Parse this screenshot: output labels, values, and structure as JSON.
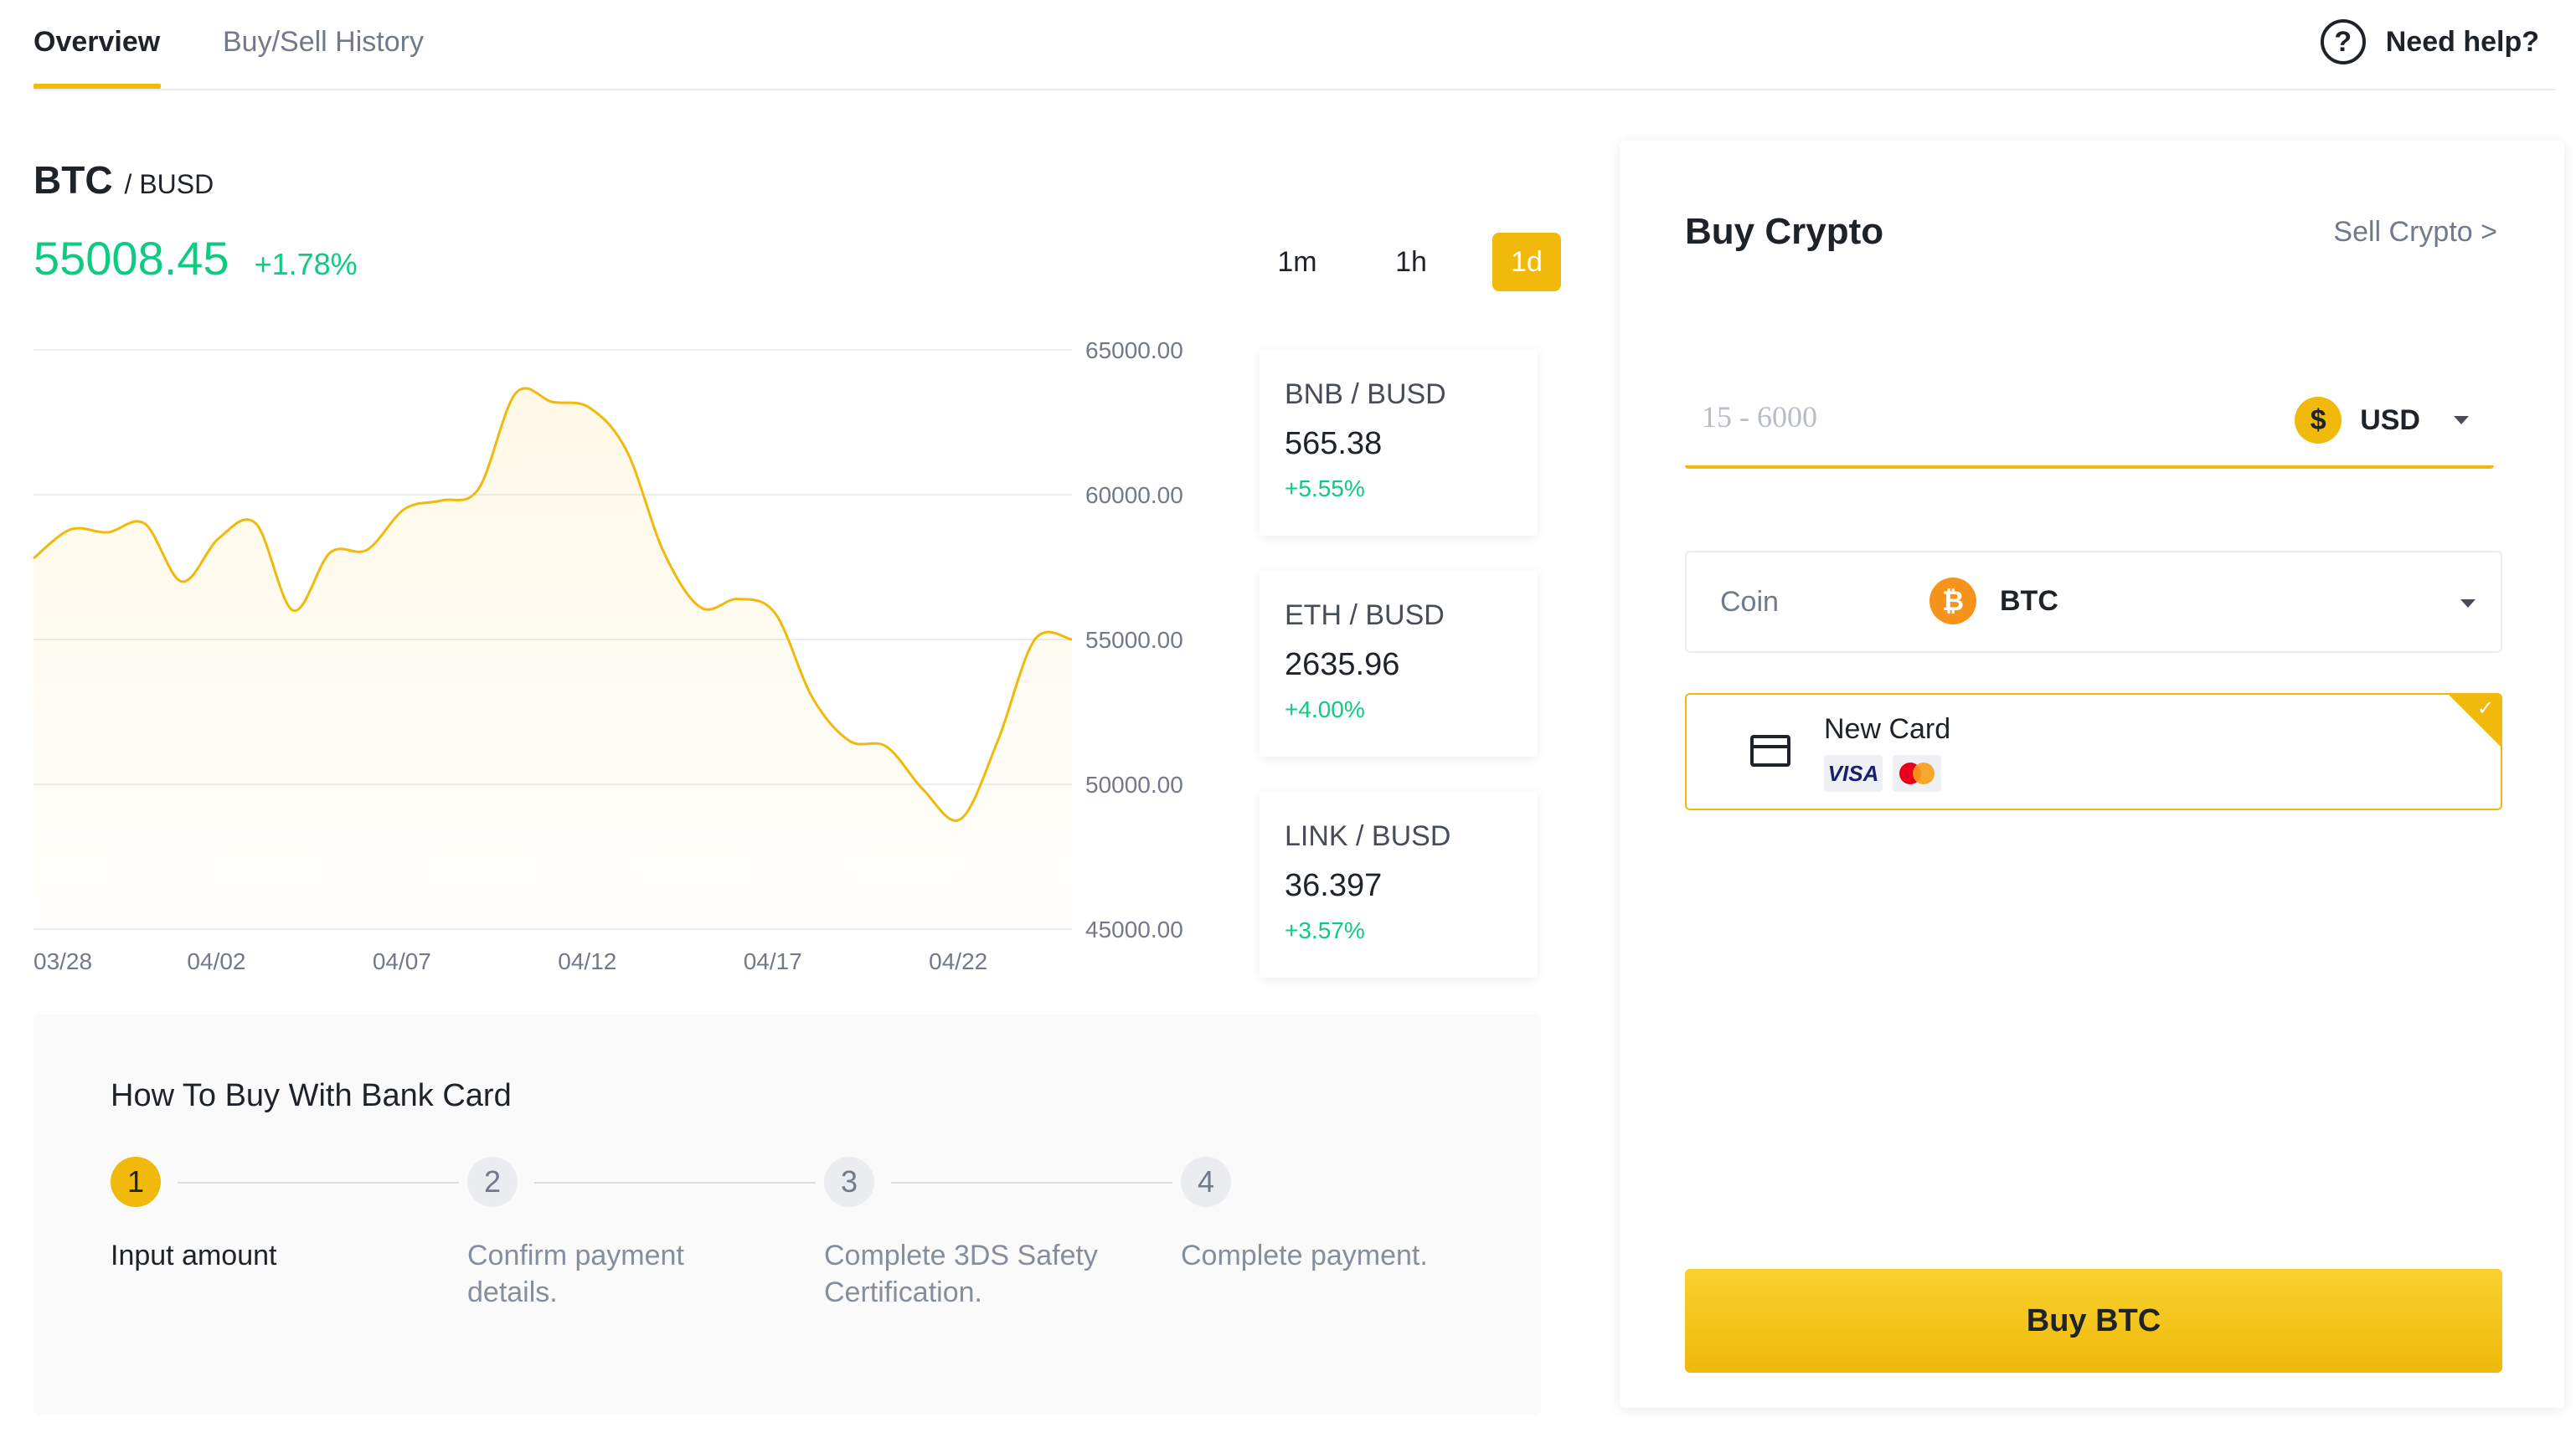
{
  "tabs": {
    "overview": "Overview",
    "history": "Buy/Sell History",
    "help_label": "Need help?",
    "help_icon": "?"
  },
  "pair": {
    "base": "BTC",
    "quote": "/ BUSD"
  },
  "price": {
    "value": "55008.45",
    "change": "+1.78%"
  },
  "ranges": [
    "1m",
    "1h",
    "1d"
  ],
  "selected_range": "1d",
  "tickers": [
    {
      "base": "BNB",
      "quote": " / BUSD",
      "price": "565.38",
      "change": "+5.55%"
    },
    {
      "base": "ETH",
      "quote": " / BUSD",
      "price": "2635.96",
      "change": "+4.00%"
    },
    {
      "base": "LINK",
      "quote": " / BUSD",
      "price": "36.397",
      "change": "+3.57%"
    }
  ],
  "chart_data": {
    "type": "area",
    "series": [
      {
        "x": [
          "03/28",
          "03/29",
          "03/30",
          "03/31",
          "04/01",
          "04/02",
          "04/03",
          "04/04",
          "04/05",
          "04/06",
          "04/07",
          "04/08",
          "04/09",
          "04/10",
          "04/11",
          "04/12",
          "04/13",
          "04/14",
          "04/15",
          "04/16",
          "04/17",
          "04/18",
          "04/19",
          "04/20",
          "04/21",
          "04/22",
          "04/23",
          "04/24",
          "04/25"
        ],
        "values": [
          57800,
          58800,
          58700,
          59000,
          57000,
          58500,
          59000,
          56000,
          58000,
          58100,
          59500,
          59800,
          60200,
          63500,
          63200,
          63000,
          61500,
          58000,
          56100,
          56400,
          55900,
          53000,
          51500,
          51300,
          49800,
          48800,
          51500,
          55000,
          55000
        ]
      }
    ],
    "x_ticks": [
      "03/28",
      "04/02",
      "04/07",
      "04/12",
      "04/17",
      "04/22"
    ],
    "y_ticks": [
      "65000.00",
      "60000.00",
      "55000.00",
      "50000.00",
      "45000.00"
    ],
    "ylim": [
      45000,
      65000
    ],
    "grid": true,
    "line_color": "#f0b90b"
  },
  "howto": {
    "title": "How To Buy With Bank Card",
    "steps": [
      {
        "num": "1",
        "label": "Input amount"
      },
      {
        "num": "2",
        "label": "Confirm payment details."
      },
      {
        "num": "3",
        "label": "Complete 3DS Safety Certification."
      },
      {
        "num": "4",
        "label": "Complete payment."
      }
    ]
  },
  "buy_panel": {
    "title": "Buy Crypto",
    "sell_link": "Sell Crypto >",
    "amount_placeholder": "15 - 6000",
    "currency_icon": "$",
    "currency": "USD",
    "coin_label": "Coin",
    "coin_icon": "₿",
    "coin": "BTC",
    "card_title": "New Card",
    "visa_label": "VISA",
    "check_icon": "✓",
    "button": "Buy BTC"
  },
  "colors": {
    "accent": "#f0b90b",
    "positive": "#0ecb81",
    "text": "#1e2329",
    "muted": "#707a8a"
  }
}
